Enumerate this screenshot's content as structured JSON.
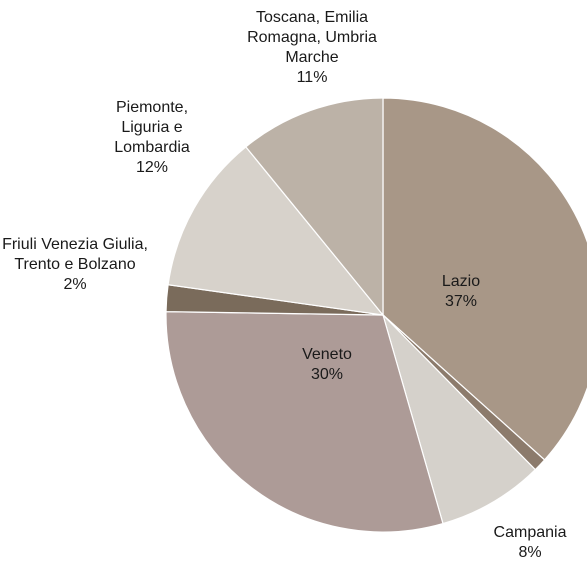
{
  "chart_data": {
    "type": "pie",
    "categories": [
      "Lazio",
      null,
      "Campania",
      "Veneto",
      "Friuli Venezia Giulia, Trento e Bolzano",
      "Piemonte, Liguria e Lombardia",
      "Toscana, Emilia Romagna, Umbria Marche"
    ],
    "values": [
      37,
      1,
      8,
      30,
      2,
      12,
      11
    ],
    "value_labels": [
      "37%",
      null,
      "8%",
      "30%",
      "2%",
      "12%",
      "11%"
    ],
    "colors": [
      "#a89787",
      "#8c7b6c",
      "#d5d1cb",
      "#ad9b97",
      "#7a6b5b",
      "#d7d2cb",
      "#bcb2a7"
    ]
  }
}
